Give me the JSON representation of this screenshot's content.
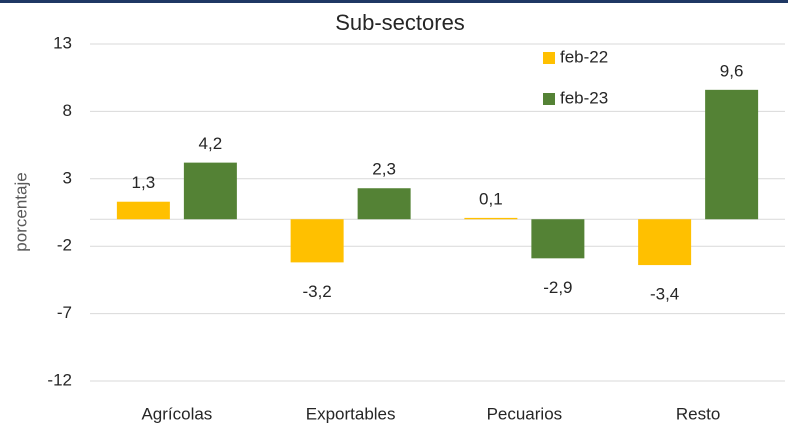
{
  "chart_data": {
    "type": "bar",
    "title": "Sub-sectores",
    "y_label": "porcentaje",
    "categories": [
      "Agrícolas",
      "Exportables",
      "Pecuarios",
      "Resto"
    ],
    "series": [
      {
        "name": "feb-22",
        "color": "#ffc000",
        "values": [
          1.3,
          -3.2,
          0.1,
          -3.4
        ],
        "value_labels": [
          "1,3",
          "-3,2",
          "0,1",
          "-3,4"
        ]
      },
      {
        "name": "feb-23",
        "color": "#548235",
        "values": [
          4.2,
          2.3,
          -2.9,
          9.6
        ],
        "value_labels": [
          "4,2",
          "2,3",
          "-2,9",
          "9,6"
        ]
      }
    ],
    "ylim": [
      -12,
      13
    ],
    "yticks": [
      13,
      8,
      3,
      -2,
      -7,
      -12
    ],
    "grid": true,
    "legend": "upper right"
  }
}
